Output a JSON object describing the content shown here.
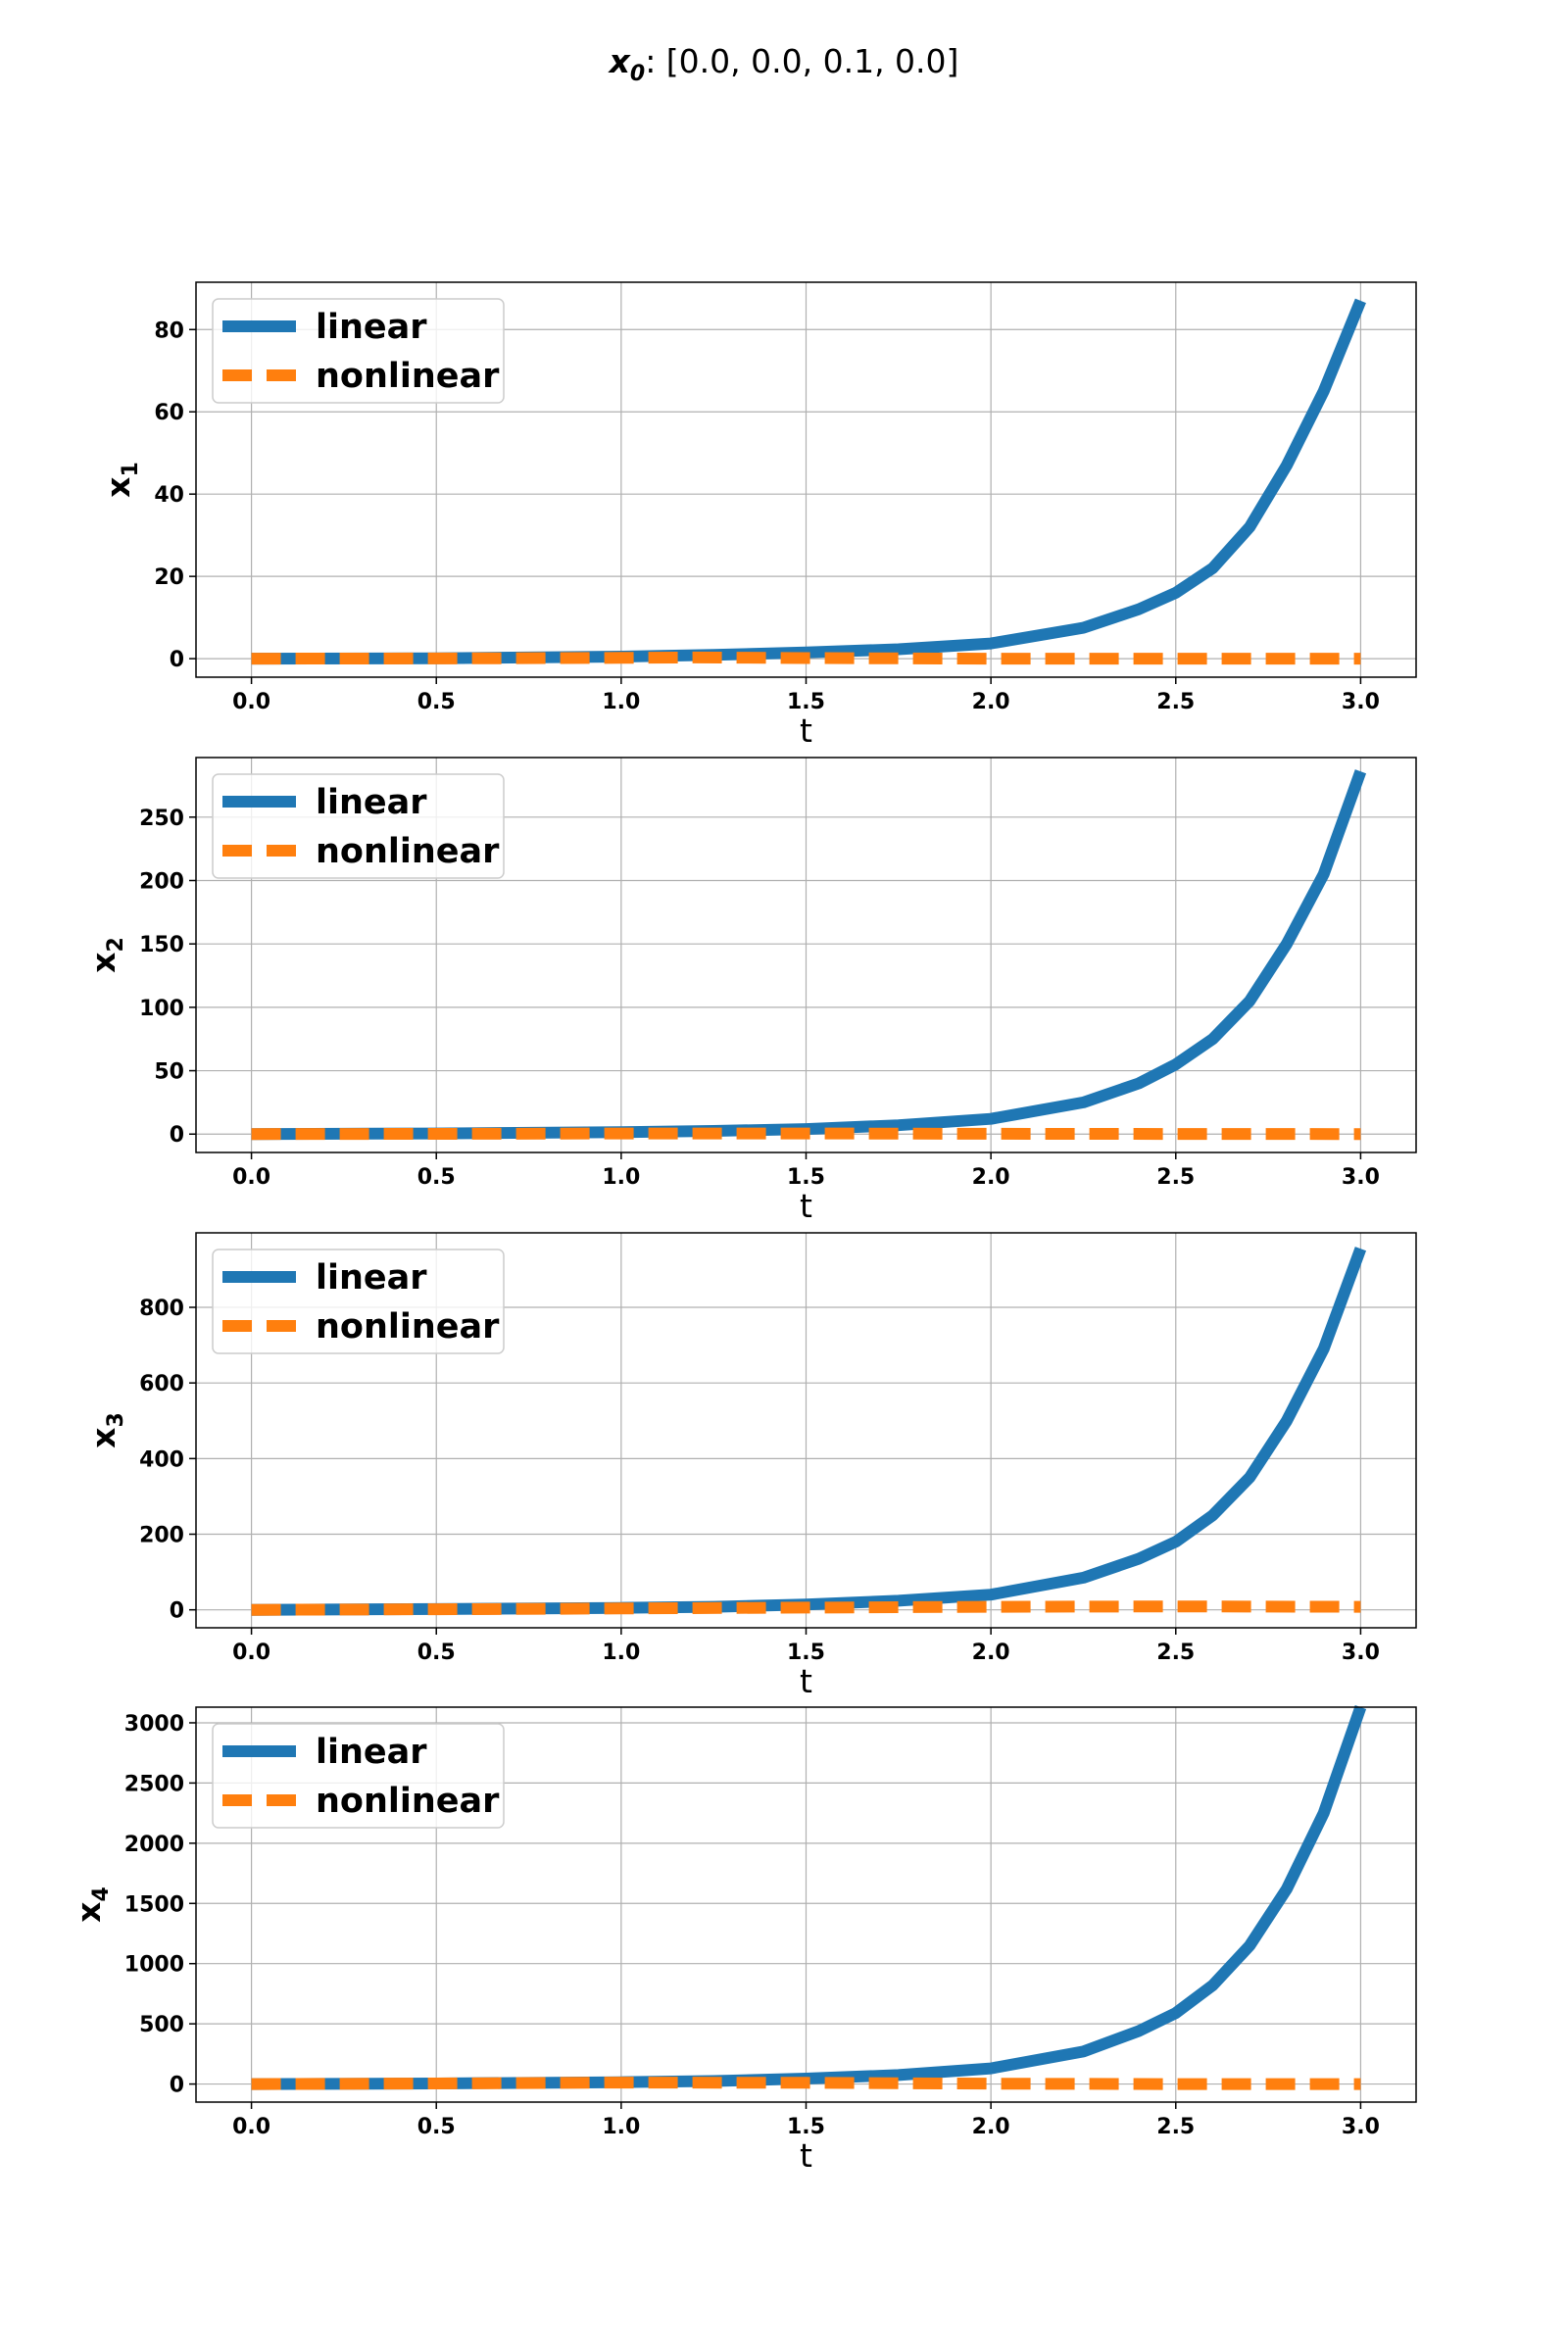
{
  "figure": {
    "title_main": "x",
    "title_sub": "0",
    "title_rest": ": [0.0, 0.0, 0.1, 0.0]"
  },
  "colors": {
    "linear": "#1f77b4",
    "nonlinear": "#ff7f0e",
    "grid": "#b0b0b0"
  },
  "chart_data": [
    {
      "type": "line",
      "xlabel": "t",
      "ylabel_main": "x",
      "ylabel_sub": "1",
      "xlim": [
        -0.15,
        3.15
      ],
      "ylim": [
        -4.5,
        91.5
      ],
      "xticks": [
        0.0,
        0.5,
        1.0,
        1.5,
        2.0,
        2.5,
        3.0
      ],
      "xtick_labels": [
        "0.0",
        "0.5",
        "1.0",
        "1.5",
        "2.0",
        "2.5",
        "3.0"
      ],
      "yticks": [
        0,
        20,
        40,
        60,
        80
      ],
      "ytick_labels": [
        "0",
        "20",
        "40",
        "60",
        "80"
      ],
      "grid": true,
      "legend": "upper left",
      "series": [
        {
          "name": "linear",
          "style": "solid",
          "x": [
            0.0,
            0.5,
            1.0,
            1.25,
            1.5,
            1.75,
            2.0,
            2.25,
            2.4,
            2.5,
            2.6,
            2.7,
            2.8,
            2.9,
            3.0
          ],
          "y": [
            0.0,
            0.1,
            0.5,
            0.9,
            1.5,
            2.3,
            3.7,
            7.5,
            12.0,
            16.0,
            22.0,
            32.0,
            47.0,
            65.0,
            87.0
          ]
        },
        {
          "name": "nonlinear",
          "style": "dashed",
          "x": [
            0.0,
            0.5,
            1.0,
            1.2,
            1.5,
            2.0,
            2.5,
            3.0
          ],
          "y": [
            0.0,
            0.05,
            0.2,
            0.3,
            0.15,
            0.0,
            0.0,
            0.0
          ]
        }
      ]
    },
    {
      "type": "line",
      "xlabel": "t",
      "ylabel_main": "x",
      "ylabel_sub": "2",
      "xlim": [
        -0.15,
        3.15
      ],
      "ylim": [
        -14.5,
        297
      ],
      "xticks": [
        0.0,
        0.5,
        1.0,
        1.5,
        2.0,
        2.5,
        3.0
      ],
      "xtick_labels": [
        "0.0",
        "0.5",
        "1.0",
        "1.5",
        "2.0",
        "2.5",
        "3.0"
      ],
      "yticks": [
        0,
        50,
        100,
        150,
        200,
        250
      ],
      "ytick_labels": [
        "0",
        "50",
        "100",
        "150",
        "200",
        "250"
      ],
      "grid": true,
      "legend": "upper left",
      "series": [
        {
          "name": "linear",
          "style": "solid",
          "x": [
            0.0,
            0.5,
            1.0,
            1.25,
            1.5,
            1.75,
            2.0,
            2.25,
            2.4,
            2.5,
            2.6,
            2.7,
            2.8,
            2.9,
            3.0
          ],
          "y": [
            0.0,
            0.5,
            1.5,
            2.5,
            4.0,
            7.0,
            12.0,
            25.0,
            40.0,
            55.0,
            75.0,
            105.0,
            150.0,
            205.0,
            286.0
          ]
        },
        {
          "name": "nonlinear",
          "style": "dashed",
          "x": [
            0.0,
            0.5,
            1.0,
            1.5,
            2.0,
            2.5,
            3.0
          ],
          "y": [
            0.0,
            0.2,
            0.5,
            0.5,
            0.3,
            0.1,
            0.0
          ]
        }
      ]
    },
    {
      "type": "line",
      "xlabel": "t",
      "ylabel_main": "x",
      "ylabel_sub": "3",
      "xlim": [
        -0.15,
        3.15
      ],
      "ylim": [
        -47.5,
        997
      ],
      "xticks": [
        0.0,
        0.5,
        1.0,
        1.5,
        2.0,
        2.5,
        3.0
      ],
      "xtick_labels": [
        "0.0",
        "0.5",
        "1.0",
        "1.5",
        "2.0",
        "2.5",
        "3.0"
      ],
      "yticks": [
        0,
        200,
        400,
        600,
        800
      ],
      "ytick_labels": [
        "0",
        "200",
        "400",
        "600",
        "800"
      ],
      "grid": true,
      "legend": "upper left",
      "series": [
        {
          "name": "linear",
          "style": "solid",
          "x": [
            0.0,
            0.5,
            1.0,
            1.25,
            1.5,
            1.75,
            2.0,
            2.25,
            2.4,
            2.5,
            2.6,
            2.7,
            2.8,
            2.9,
            3.0
          ],
          "y": [
            0.0,
            2.0,
            5.0,
            8.0,
            14.0,
            24.0,
            40.0,
            85.0,
            135.0,
            180.0,
            250.0,
            350.0,
            500.0,
            690.0,
            955.0
          ]
        },
        {
          "name": "nonlinear",
          "style": "dashed",
          "x": [
            0.0,
            0.5,
            1.0,
            1.5,
            2.0,
            2.5,
            3.0
          ],
          "y": [
            0.0,
            1.5,
            3.5,
            6.0,
            8.0,
            9.0,
            8.0
          ]
        }
      ]
    },
    {
      "type": "line",
      "xlabel": "t",
      "ylabel_main": "x",
      "ylabel_sub": "4",
      "xlim": [
        -0.15,
        3.15
      ],
      "ylim": [
        -150,
        3130
      ],
      "xticks": [
        0.0,
        0.5,
        1.0,
        1.5,
        2.0,
        2.5,
        3.0
      ],
      "xtick_labels": [
        "0.0",
        "0.5",
        "1.0",
        "1.5",
        "2.0",
        "2.5",
        "3.0"
      ],
      "yticks": [
        0,
        500,
        1000,
        1500,
        2000,
        2500,
        3000
      ],
      "ytick_labels": [
        "0",
        "500",
        "1000",
        "1500",
        "2000",
        "2500",
        "3000"
      ],
      "grid": true,
      "legend": "upper left",
      "series": [
        {
          "name": "linear",
          "style": "solid",
          "x": [
            0.0,
            0.5,
            1.0,
            1.25,
            1.5,
            1.75,
            2.0,
            2.25,
            2.4,
            2.5,
            2.6,
            2.7,
            2.8,
            2.9,
            3.0
          ],
          "y": [
            0.0,
            5.0,
            15.0,
            25.0,
            45.0,
            75.0,
            130.0,
            270.0,
            440.0,
            590.0,
            820.0,
            1150.0,
            1620.0,
            2250.0,
            3130.0
          ]
        },
        {
          "name": "nonlinear",
          "style": "dashed",
          "x": [
            0.0,
            0.5,
            1.0,
            1.5,
            2.0,
            2.5,
            3.0
          ],
          "y": [
            0.0,
            5.0,
            12.0,
            10.0,
            3.0,
            0.0,
            0.0
          ]
        }
      ]
    }
  ]
}
